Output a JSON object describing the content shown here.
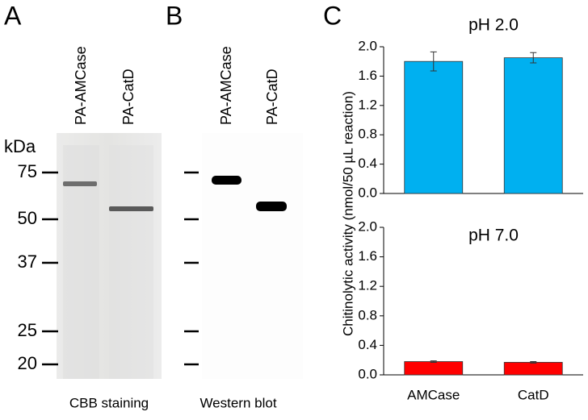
{
  "panels": {
    "a": {
      "letter": "A",
      "lanes": [
        "PA-AMCase",
        "PA-CatD"
      ],
      "unit": "kDa",
      "markers": [
        75,
        50,
        37,
        25,
        20
      ],
      "caption": "CBB staining"
    },
    "b": {
      "letter": "B",
      "lanes": [
        "PA-AMCase",
        "PA-CatD"
      ],
      "caption": "Western blot"
    },
    "c": {
      "letter": "C",
      "y_label": "Chitinolytic activity (nmol/50 µL reaction)"
    }
  },
  "chart_data": [
    {
      "type": "bar",
      "title": "pH 2.0",
      "categories": [
        null,
        null
      ],
      "values": [
        1.8,
        1.85
      ],
      "errors": [
        0.13,
        0.07
      ],
      "color": "#00b0f0",
      "ylim": [
        0,
        2
      ],
      "yticks": [
        {
          "value": 0,
          "label": "0.0"
        },
        {
          "value": 0.4,
          "label": "0.4"
        },
        {
          "value": 0.8,
          "label": "0.8"
        },
        {
          "value": 1.2,
          "label": "1.2"
        },
        {
          "value": 1.6,
          "label": "1.6"
        },
        {
          "value": 2,
          "label": "2.0"
        }
      ]
    },
    {
      "type": "bar",
      "title": "pH 7.0",
      "categories": [
        "AMCase",
        "CatD"
      ],
      "values": [
        0.18,
        0.17
      ],
      "errors": [
        0.01,
        0.01
      ],
      "color": "#ff0000",
      "ylim": [
        0,
        2
      ],
      "yticks": [
        {
          "value": 0,
          "label": "0.0"
        },
        {
          "value": 0.4,
          "label": "0.4"
        },
        {
          "value": 0.8,
          "label": "0.8"
        },
        {
          "value": 1.2,
          "label": "1.2"
        },
        {
          "value": 1.6,
          "label": "1.6"
        },
        {
          "value": 2,
          "label": "2.0"
        }
      ]
    }
  ]
}
